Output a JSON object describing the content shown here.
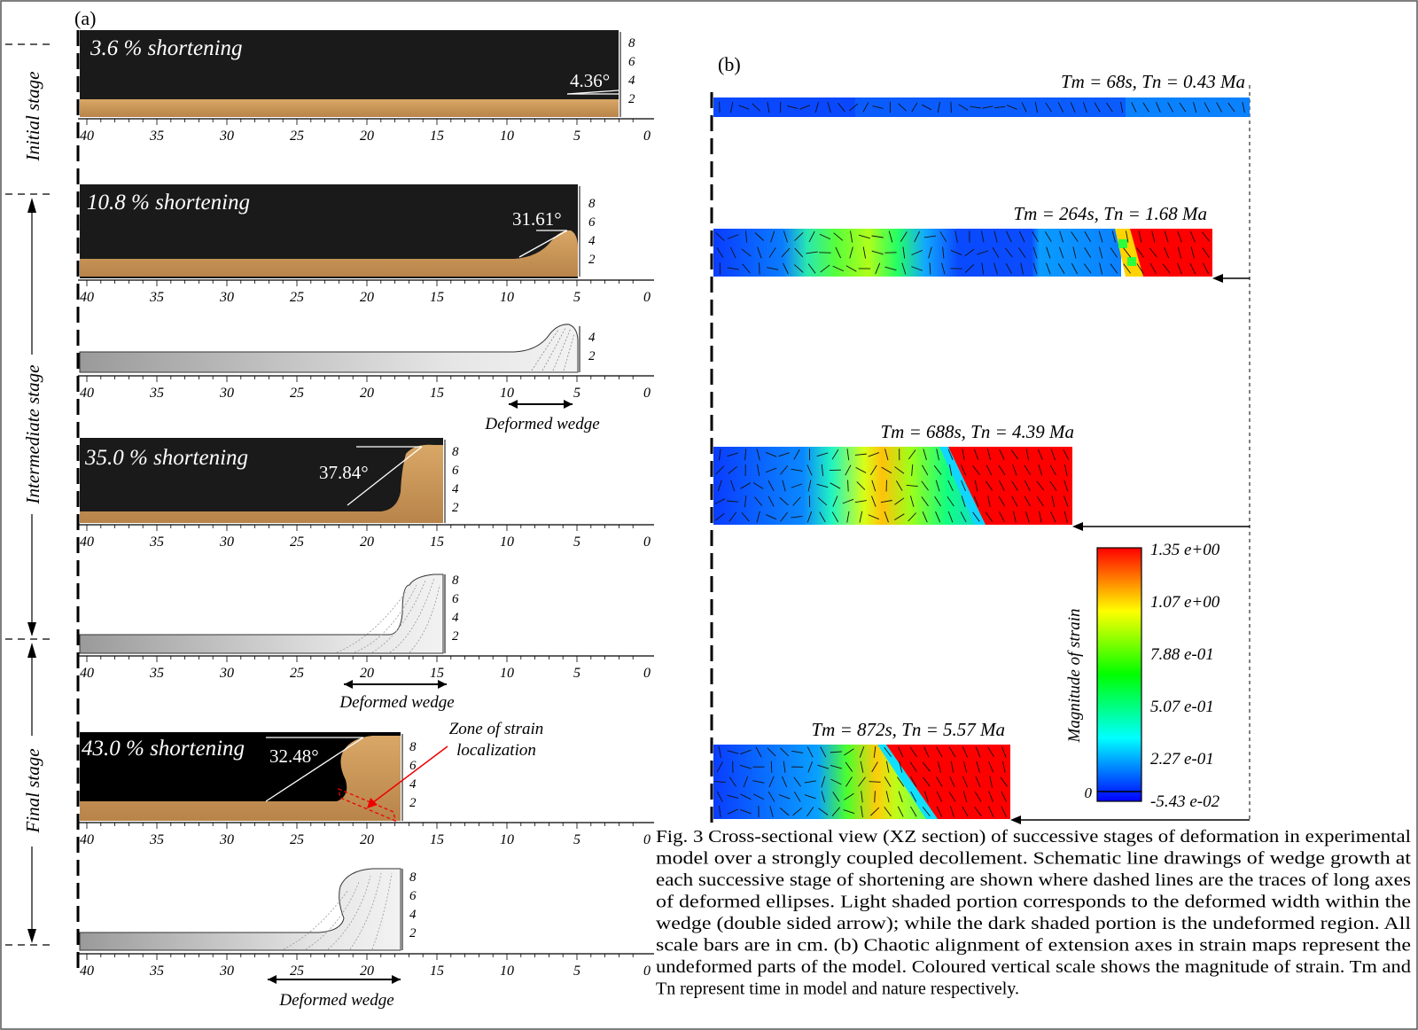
{
  "panel_a": {
    "label": "(a)",
    "stage_labels": {
      "initial": "Initial stage",
      "intermediate": "Intermediate stage",
      "final": "Final stage"
    },
    "x_ticks": [
      "40",
      "35",
      "30",
      "25",
      "20",
      "15",
      "10",
      "5",
      "0"
    ],
    "photos": [
      {
        "title": "3.6 % shortening",
        "angle": "4.36°",
        "y_ticks": [
          "2",
          "4",
          "6",
          "8"
        ]
      },
      {
        "title": "10.8 % shortening",
        "angle": "31.61°",
        "y_ticks": [
          "2",
          "4",
          "6",
          "8"
        ]
      },
      {
        "title": "35.0 % shortening",
        "angle": "37.84°",
        "y_ticks": [
          "2",
          "4",
          "6",
          "8"
        ]
      },
      {
        "title": "43.0 % shortening",
        "angle": "32.48°",
        "y_ticks": [
          "2",
          "4",
          "6",
          "8"
        ]
      }
    ],
    "sketches": [
      {
        "y_ticks": [
          "2",
          "4"
        ],
        "caption": "Deformed wedge"
      },
      {
        "y_ticks": [
          "2",
          "4",
          "6",
          "8"
        ],
        "caption": "Deformed wedge"
      },
      {
        "y_ticks": [
          "2",
          "4",
          "6",
          "8"
        ],
        "caption": "Deformed wedge"
      }
    ],
    "zone_label": [
      "Zone of strain",
      "localization"
    ]
  },
  "panel_b": {
    "label": "(b)",
    "maps": [
      {
        "time": "Tm = 68s, Tn = 0.43 Ma"
      },
      {
        "time": "Tm = 264s, Tn = 1.68 Ma"
      },
      {
        "time": "Tm = 688s, Tn = 4.39 Ma"
      },
      {
        "time": "Tm = 872s, Tn = 5.57 Ma"
      }
    ],
    "colorbar": {
      "title": "Magnitude of strain",
      "ticks": [
        "1.35 e+00",
        "1.07 e+00",
        "7.88 e-01",
        "5.07 e-01",
        "2.27 e-01",
        "-5.43 e-02"
      ],
      "zero": "0",
      "colors": [
        "#ff0000",
        "#ffff00",
        "#00ff00",
        "#00ffff",
        "#0000ff"
      ]
    }
  },
  "caption": [
    "Fig. 3 Cross-sectional view (XZ section) of successive stages of deformation in experimental",
    "model over a strongly coupled decollement. Schematic line drawings of wedge growth at",
    "each successive stage of shortening are shown where dashed lines are the traces of long axes",
    "of deformed ellipses. Light shaded portion corresponds to the deformed width within the",
    "wedge (double sided arrow); while the dark shaded portion is the undeformed region. All",
    "scale bars are in cm. (b) Chaotic alignment of extension axes in strain maps represent the",
    "undeformed parts of the model. Coloured vertical scale shows the magnitude of strain. Tm and",
    "Tn represent time in model and nature respectively."
  ]
}
